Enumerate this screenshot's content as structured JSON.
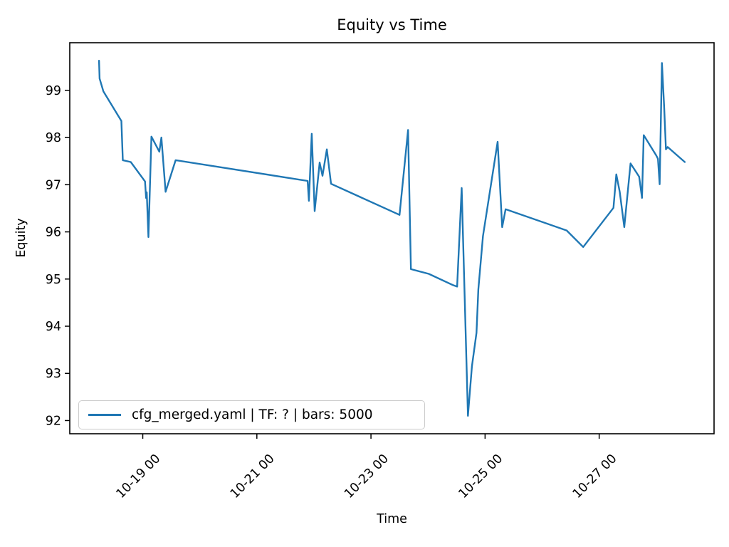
{
  "chart_data": {
    "type": "line",
    "title": "Equity vs Time",
    "xlabel": "Time",
    "ylabel": "Equity",
    "line_color": "#1f77b4",
    "grid": false,
    "legend": {
      "label": "cfg_merged.yaml | TF: ? | bars: 5000",
      "position": "lower left"
    },
    "ylim": [
      91.72,
      100.01
    ],
    "xlim_days": [
      -1.2793,
      10.0133
    ],
    "yticks": [
      92,
      93,
      94,
      95,
      96,
      97,
      98,
      99
    ],
    "xticks": [
      {
        "label": "10-19 00",
        "t": 0
      },
      {
        "label": "10-21 00",
        "t": 2
      },
      {
        "label": "10-23 00",
        "t": 4
      },
      {
        "label": "10-25 00",
        "t": 6
      },
      {
        "label": "10-27 00",
        "t": 8
      }
    ],
    "series": [
      {
        "name": "cfg_merged.yaml | TF: ? | bars: 5000",
        "points": [
          {
            "time": "10-18 05:30",
            "t": -0.766,
            "v": 99.63
          },
          {
            "time": "10-18 05:45",
            "t": -0.757,
            "v": 99.25
          },
          {
            "time": "10-18 07:30",
            "t": -0.69,
            "v": 98.98
          },
          {
            "time": "10-18 15:00",
            "t": -0.375,
            "v": 98.35
          },
          {
            "time": "10-18 15:30",
            "t": -0.35,
            "v": 97.52
          },
          {
            "time": "10-18 19:00",
            "t": -0.21,
            "v": 97.48
          },
          {
            "time": "10-19 01:00",
            "t": 0.04,
            "v": 97.07
          },
          {
            "time": "10-19 01:30",
            "t": 0.058,
            "v": 96.72
          },
          {
            "time": "10-19 01:45",
            "t": 0.07,
            "v": 96.84
          },
          {
            "time": "10-19 02:30",
            "t": 0.1,
            "v": 95.89
          },
          {
            "time": "10-19 03:30",
            "t": 0.152,
            "v": 98.02
          },
          {
            "time": "10-19 07:00",
            "t": 0.29,
            "v": 97.7
          },
          {
            "time": "10-19 08:00",
            "t": 0.327,
            "v": 98.0
          },
          {
            "time": "10-19 09:30",
            "t": 0.4,
            "v": 96.85
          },
          {
            "time": "10-19 14:00",
            "t": 0.576,
            "v": 97.52
          },
          {
            "time": "10-21 21:30",
            "t": 2.89,
            "v": 97.08
          },
          {
            "time": "10-21 22:00",
            "t": 2.912,
            "v": 96.66
          },
          {
            "time": "10-21 23:00",
            "t": 2.962,
            "v": 98.08
          },
          {
            "time": "10-22 00:15",
            "t": 3.013,
            "v": 96.44
          },
          {
            "time": "10-22 02:30",
            "t": 3.1,
            "v": 97.47
          },
          {
            "time": "10-22 03:30",
            "t": 3.151,
            "v": 97.19
          },
          {
            "time": "10-22 05:30",
            "t": 3.226,
            "v": 97.75
          },
          {
            "time": "10-22 07:00",
            "t": 3.3,
            "v": 97.02
          },
          {
            "time": "10-22 08:00",
            "t": 3.335,
            "v": 97.0
          },
          {
            "time": "10-23 12:00",
            "t": 4.5,
            "v": 96.36
          },
          {
            "time": "10-23 15:30",
            "t": 4.65,
            "v": 98.16
          },
          {
            "time": "10-23 17:00",
            "t": 4.7,
            "v": 95.21
          },
          {
            "time": "10-24 00:15",
            "t": 5.013,
            "v": 95.11
          },
          {
            "time": "10-24 10:30",
            "t": 5.44,
            "v": 94.87
          },
          {
            "time": "10-24 12:15",
            "t": 5.51,
            "v": 94.84
          },
          {
            "time": "10-24 14:00",
            "t": 5.59,
            "v": 96.93
          },
          {
            "time": "10-24 17:00",
            "t": 5.7,
            "v": 92.1
          },
          {
            "time": "10-24 18:30",
            "t": 5.77,
            "v": 93.15
          },
          {
            "time": "10-24 20:30",
            "t": 5.85,
            "v": 93.86
          },
          {
            "time": "10-24 21:00",
            "t": 5.882,
            "v": 94.78
          },
          {
            "time": "10-24 23:00",
            "t": 5.963,
            "v": 95.91
          },
          {
            "time": "10-25 05:15",
            "t": 6.22,
            "v": 97.91
          },
          {
            "time": "10-25 07:00",
            "t": 6.3,
            "v": 96.1
          },
          {
            "time": "10-25 08:30",
            "t": 6.36,
            "v": 96.48
          },
          {
            "time": "10-26 10:30",
            "t": 7.43,
            "v": 96.03
          },
          {
            "time": "10-26 17:15",
            "t": 7.72,
            "v": 95.68
          },
          {
            "time": "10-27 06:00",
            "t": 8.25,
            "v": 96.51
          },
          {
            "time": "10-27 07:00",
            "t": 8.3,
            "v": 97.22
          },
          {
            "time": "10-27 08:30",
            "t": 8.36,
            "v": 96.85
          },
          {
            "time": "10-27 10:30",
            "t": 8.44,
            "v": 96.1
          },
          {
            "time": "10-27 13:00",
            "t": 8.55,
            "v": 97.45
          },
          {
            "time": "10-27 17:00",
            "t": 8.7,
            "v": 97.17
          },
          {
            "time": "10-27 18:00",
            "t": 8.75,
            "v": 96.72
          },
          {
            "time": "10-27 18:45",
            "t": 8.78,
            "v": 98.05
          },
          {
            "time": "10-28 00:00",
            "t": 9.0,
            "v": 97.62
          },
          {
            "time": "10-28 00:45",
            "t": 9.03,
            "v": 97.55
          },
          {
            "time": "10-28 01:30",
            "t": 9.06,
            "v": 97.01
          },
          {
            "time": "10-28 02:30",
            "t": 9.1,
            "v": 99.58
          },
          {
            "time": "10-28 03:30",
            "t": 9.14,
            "v": 98.62
          },
          {
            "time": "10-28 04:00",
            "t": 9.17,
            "v": 97.75
          },
          {
            "time": "10-28 05:00",
            "t": 9.2,
            "v": 97.8
          },
          {
            "time": "10-28 12:00",
            "t": 9.5,
            "v": 97.48
          }
        ]
      }
    ]
  }
}
